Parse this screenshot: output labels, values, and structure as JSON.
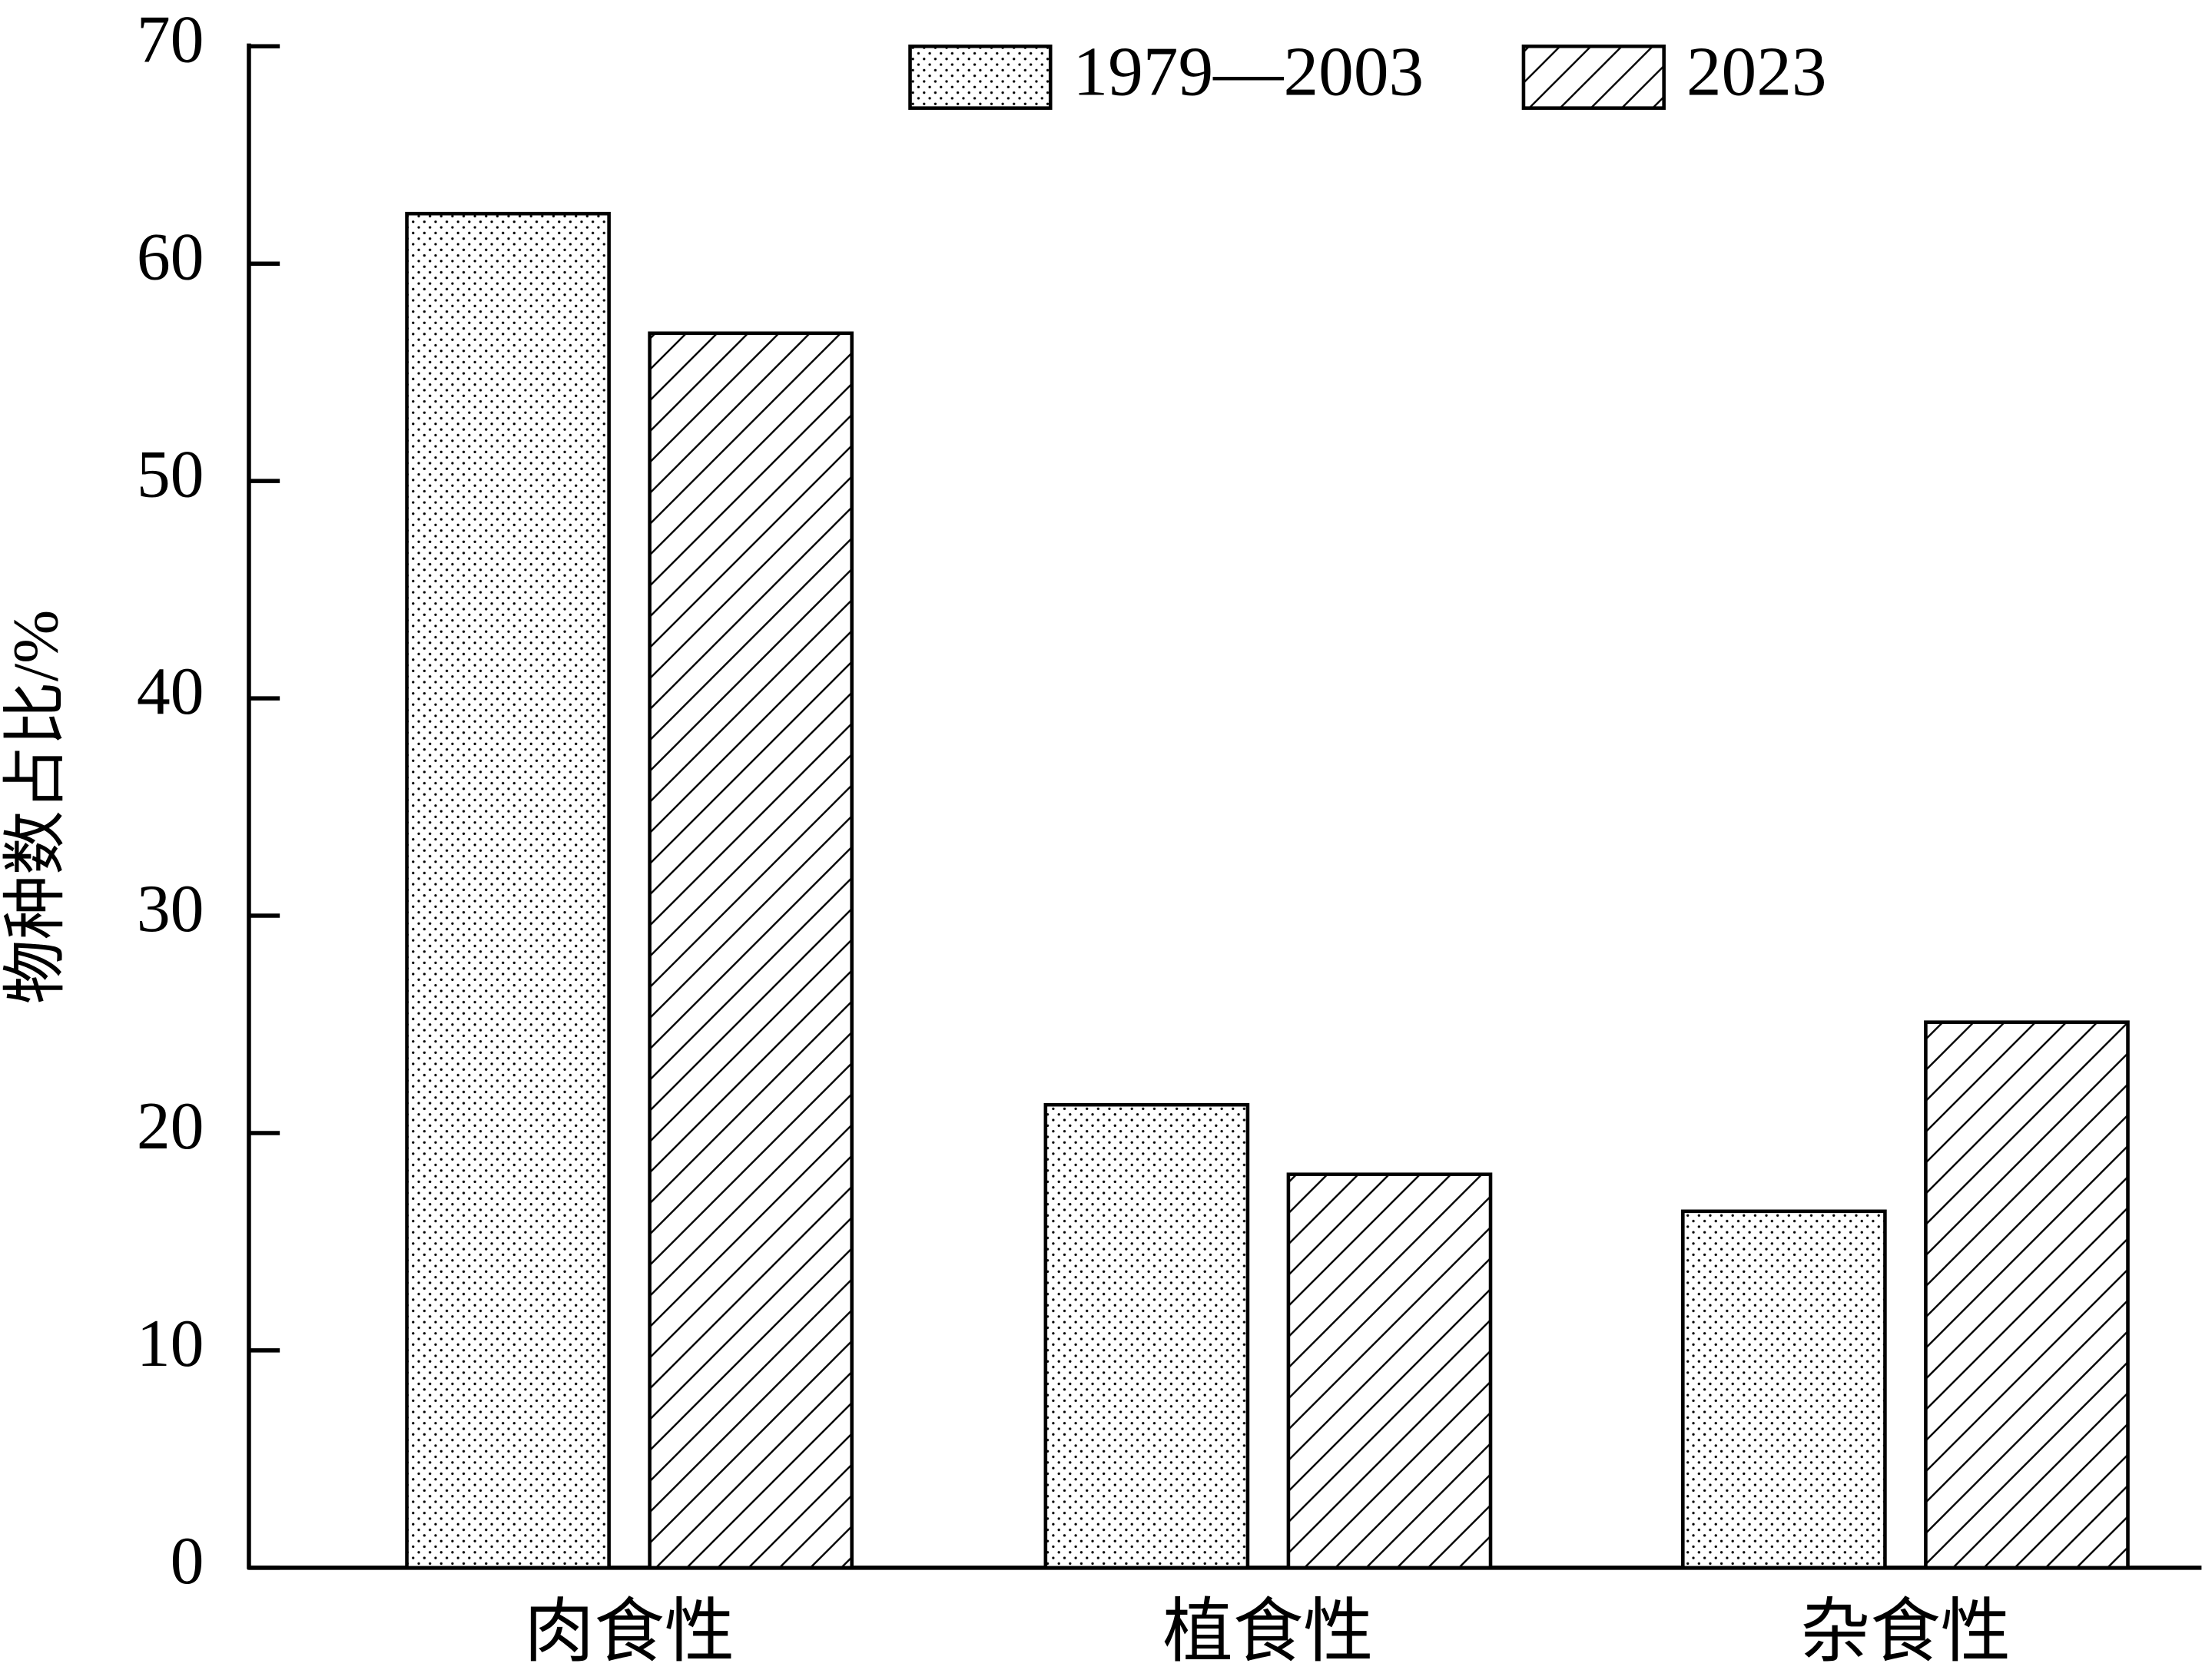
{
  "chart_data": {
    "type": "bar",
    "y_label": "物种数占比/%",
    "categories": [
      "肉食性",
      "植食性",
      "杂食性"
    ],
    "series": [
      {
        "name": "1979—2003",
        "color": "#000000",
        "pattern": "dots",
        "values": [
          62.3,
          21.3,
          16.4
        ]
      },
      {
        "name": "2023",
        "color": "#000000",
        "pattern": "hatch",
        "values": [
          56.8,
          18.1,
          25.1
        ]
      }
    ],
    "ylim": [
      0,
      70
    ],
    "yticks": [
      0,
      10,
      20,
      30,
      40,
      50,
      60,
      70
    ],
    "grid": false,
    "legend": "top-right"
  }
}
